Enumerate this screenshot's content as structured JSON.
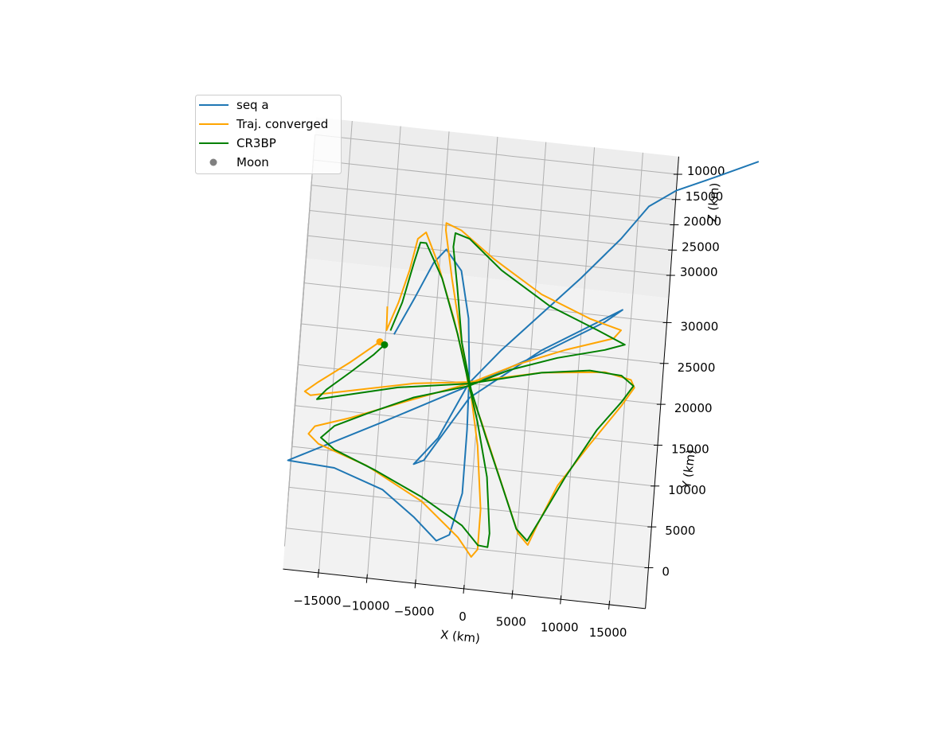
{
  "chart_data": {
    "type": "line3d",
    "xlabel": "X (km)",
    "ylabel": "Y (km)",
    "zlabel": "Z (km)",
    "xlim": [
      -18700,
      18700
    ],
    "ylim": [
      -5000,
      33000
    ],
    "zlim": [
      6500,
      34500
    ],
    "xticks": [
      {
        "value": -15000,
        "label": "−15000"
      },
      {
        "value": -10000,
        "label": "−10000"
      },
      {
        "value": -5000,
        "label": "−5000"
      },
      0,
      5000,
      10000,
      15000
    ],
    "yticks": [
      0,
      5000,
      10000,
      15000,
      20000,
      25000,
      30000
    ],
    "zticks": [
      10000,
      15000,
      20000,
      25000,
      30000
    ],
    "grid": true,
    "legend": "upper left",
    "series": [
      {
        "name": "seq a",
        "color": "#1f77b4",
        "x": [
          26900,
          22700,
          18700,
          16000,
          13400,
          9600,
          5800,
          2000,
          -1100,
          -3800,
          -6100,
          -5100,
          -900,
          6100,
          14100,
          12400,
          6100,
          -1100,
          -9600,
          -19000,
          -14200,
          -9100,
          -5700,
          -3200,
          -1900,
          -900,
          -900,
          -1100,
          -1600,
          -2700,
          -4400,
          -5600,
          -7300,
          -9100
        ],
        "y": [
          41800,
          39400,
          37200,
          34900,
          30600,
          25300,
          20400,
          15500,
          11000,
          4000,
          500,
          1100,
          9300,
          16000,
          22000,
          20300,
          15600,
          10700,
          5200,
          -700,
          -1000,
          -3000,
          -5900,
          -8500,
          -7600,
          -2400,
          5400,
          12200,
          18900,
          24600,
          27000,
          25200,
          20600,
          16000
        ],
        "z": [
          20000,
          20000,
          20000,
          20000,
          20000,
          20000,
          20000,
          20000,
          20000,
          20000,
          20000,
          20000,
          20000,
          20000,
          20000,
          20000,
          20000,
          20000,
          20000,
          20000,
          20000,
          20000,
          20000,
          20000,
          20000,
          20000,
          20000,
          20000,
          20000,
          20000,
          20000,
          20000,
          20000,
          20000
        ]
      },
      {
        "name": "Traj. converged",
        "color": "orange",
        "start_marker": true,
        "x": [
          -10500,
          -13400,
          -16500,
          -17800,
          -17200,
          -12300,
          -6700,
          -1100,
          6300,
          12800,
          15500,
          15900,
          14700,
          11700,
          8800,
          7000,
          6200,
          5100,
          2800,
          500,
          -1100,
          -2300,
          -3600,
          -4600,
          -4600,
          -3000,
          500,
          5700,
          10800,
          14100,
          13400,
          8600,
          3800,
          -1100,
          -7400,
          -12900,
          -16500,
          -17100,
          -16000,
          -10900,
          -5000,
          -1000,
          500,
          1100,
          1100,
          300,
          -900,
          -3100,
          -5200,
          -6600,
          -7400,
          -8000,
          -8900,
          -9900,
          -10000
        ],
        "y": [
          14900,
          12000,
          9200,
          7900,
          7500,
          8800,
          10300,
          11200,
          13300,
          14200,
          13600,
          12700,
          10300,
          5100,
          -200,
          -5300,
          -7800,
          -6500,
          0,
          6600,
          10700,
          16900,
          23500,
          29300,
          30200,
          29500,
          26500,
          22800,
          20500,
          19500,
          18400,
          16400,
          14000,
          11000,
          8000,
          5300,
          3800,
          2800,
          1700,
          -300,
          -3900,
          -7800,
          -10000,
          -9000,
          -4100,
          3600,
          10500,
          18700,
          25300,
          28800,
          27900,
          24000,
          19900,
          16400,
          19300
        ],
        "z": [
          20000,
          20000,
          20000,
          20000,
          20000,
          20000,
          20000,
          20000,
          20000,
          20000,
          20000,
          20000,
          20000,
          20000,
          20000,
          20000,
          20000,
          20000,
          20000,
          20000,
          20000,
          20000,
          20000,
          20000,
          20000,
          20000,
          20000,
          20000,
          20000,
          20000,
          20000,
          20000,
          20000,
          20000,
          20000,
          20000,
          20000,
          20000,
          20000,
          20000,
          20000,
          20000,
          20000,
          20000,
          20000,
          20000,
          20000,
          20000,
          20000,
          20000,
          20000,
          20000,
          20000,
          20000,
          20000
        ]
      },
      {
        "name": "CR3BP",
        "color": "green",
        "start_marker": true,
        "x": [
          -10000,
          -11000,
          -13300,
          -15600,
          -16500,
          -13900,
          -8300,
          -1100,
          6300,
          11200,
          14500,
          15800,
          14700,
          12400,
          9500,
          7400,
          6100,
          4900,
          3100,
          1100,
          -800,
          -2100,
          -3000,
          -3700,
          -3600,
          -2100,
          1400,
          6600,
          11700,
          14600,
          12600,
          7800,
          3000,
          -1100,
          -6600,
          -11300,
          -14500,
          -15800,
          -14300,
          -10100,
          -5000,
          -700,
          1100,
          2100,
          2200,
          1500,
          100,
          -1000,
          -2600,
          -4600,
          -6500,
          -7100,
          -7600,
          -8500,
          -9500
        ],
        "y": [
          14600,
          13300,
          10800,
          8400,
          7100,
          7900,
          9600,
          11000,
          13300,
          14200,
          14000,
          12900,
          10800,
          7100,
          900,
          -4200,
          -7300,
          -6000,
          -900,
          4700,
          10300,
          15900,
          22600,
          27400,
          29100,
          28600,
          25200,
          21500,
          19200,
          17800,
          16900,
          15300,
          13200,
          10700,
          8600,
          6000,
          4100,
          2500,
          1200,
          -700,
          -3400,
          -6300,
          -8500,
          -8600,
          -6900,
          -100,
          6500,
          10700,
          16900,
          23400,
          27500,
          27500,
          25000,
          20000,
          16400
        ],
        "z": [
          20000,
          20000,
          20000,
          20000,
          20000,
          20000,
          20000,
          20000,
          20000,
          20000,
          20000,
          20000,
          20000,
          20000,
          20000,
          20000,
          20000,
          20000,
          20000,
          20000,
          20000,
          20000,
          20000,
          20000,
          20000,
          20000,
          20000,
          20000,
          20000,
          20000,
          20000,
          20000,
          20000,
          20000,
          20000,
          20000,
          20000,
          20000,
          20000,
          20000,
          20000,
          20000,
          20000,
          20000,
          20000,
          20000,
          20000,
          20000,
          20000,
          20000,
          20000,
          20000,
          20000,
          20000,
          20000
        ]
      },
      {
        "name": "Moon",
        "color": "gray",
        "marker": "o"
      }
    ]
  }
}
